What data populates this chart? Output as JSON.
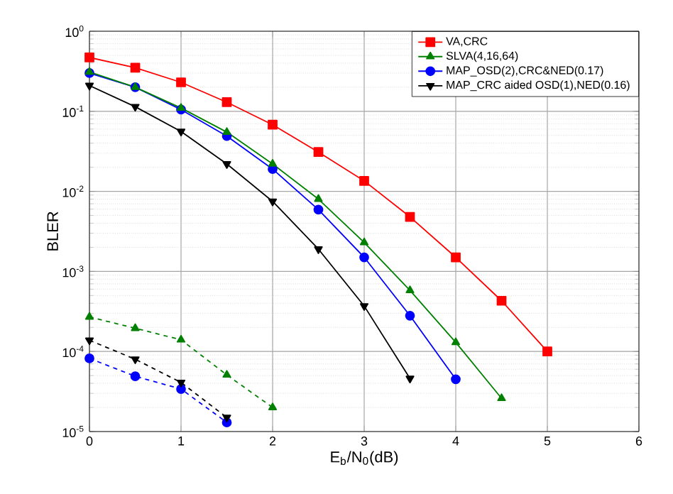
{
  "chart_data": {
    "type": "line",
    "xlabel": "E$_{b}$/N$_{0}$(dB)",
    "ylabel": "BLER",
    "log": "y",
    "grid": true,
    "legend": "top right",
    "xlim": [
      0,
      6
    ],
    "xticks": [
      0,
      1,
      2,
      3,
      4,
      5,
      6
    ],
    "ylim": [
      1e-05,
      1
    ],
    "yticks": [
      {
        "value": 1e-05,
        "label": "10$^{-5}$"
      },
      {
        "value": 0.0001,
        "label": "10$^{-4}$"
      },
      {
        "value": 0.001,
        "label": "10$^{-3}$"
      },
      {
        "value": 0.01,
        "label": "10$^{-2}$"
      },
      {
        "value": 0.1,
        "label": "10$^{-1}$"
      },
      {
        "value": 1,
        "label": "10$^{0}$"
      }
    ],
    "series": [
      {
        "name": "VA,CRC",
        "color": "#ff0000",
        "marker": "square",
        "line_style": "solid",
        "x": [
          0,
          0.5,
          1,
          1.5,
          2,
          2.5,
          3,
          3.5,
          4,
          4.5,
          5
        ],
        "values": [
          0.47,
          0.35,
          0.23,
          0.13,
          0.068,
          0.031,
          0.0135,
          0.0048,
          0.0015,
          0.00043,
          0.0001
        ]
      },
      {
        "name": "SLVA(4,16,64)",
        "color": "#008000",
        "marker": "triangle",
        "line_style": "solid",
        "x": [
          0,
          0.5,
          1,
          1.5,
          2,
          2.5,
          3,
          3.5,
          4,
          4.5
        ],
        "values": [
          0.31,
          0.2,
          0.11,
          0.055,
          0.022,
          0.008,
          0.0023,
          0.00058,
          0.00013,
          2.6e-05
        ]
      },
      {
        "name": "MAP_OSD(2),CRC&NED(0.17)",
        "color": "#0000ff",
        "marker": "circle",
        "line_style": "solid",
        "x": [
          0,
          0.5,
          1,
          1.5,
          2,
          2.5,
          3,
          3.5,
          4
        ],
        "values": [
          0.3,
          0.2,
          0.105,
          0.049,
          0.019,
          0.0059,
          0.0015,
          0.00028,
          4.5e-05
        ]
      },
      {
        "name": "MAP_CRC aided OSD(1),NED(0.16)",
        "color": "#000000",
        "marker": "triangle down",
        "line_style": "solid",
        "x": [
          0,
          0.5,
          1,
          1.5,
          2,
          2.5,
          3,
          3.5
        ],
        "values": [
          0.21,
          0.114,
          0.056,
          0.022,
          0.0075,
          0.0019,
          0.00037,
          4.6e-05
        ]
      },
      {
        "color": "#008000",
        "marker": "triangle",
        "line_style": "dashed",
        "x": [
          0,
          0.5,
          1,
          1.5,
          2
        ],
        "values": [
          0.00027,
          0.000195,
          0.00014,
          5.1e-05,
          2e-05
        ]
      },
      {
        "color": "#000000",
        "marker": "triangle down",
        "line_style": "dashed",
        "x": [
          0,
          0.5,
          1,
          1.5
        ],
        "values": [
          0.000138,
          8e-05,
          4.1e-05,
          1.5e-05
        ]
      },
      {
        "color": "#0000ff",
        "marker": "circle",
        "line_style": "dashed",
        "x": [
          0,
          0.5,
          1,
          1.5
        ],
        "values": [
          8.2e-05,
          4.9e-05,
          3.4e-05,
          1.3e-05
        ]
      }
    ]
  }
}
